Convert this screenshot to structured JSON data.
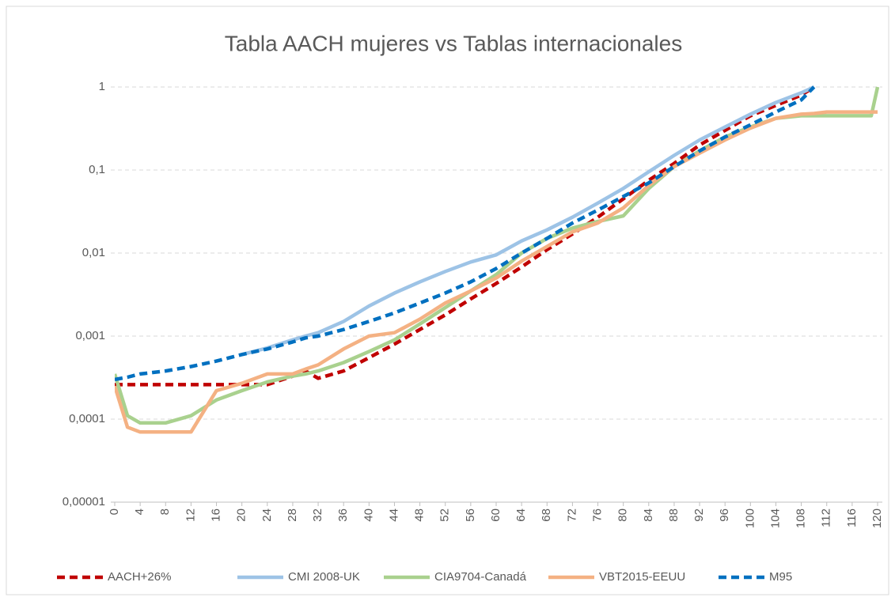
{
  "chart_data": {
    "type": "line",
    "title": "Tabla AACH mujeres vs Tablas internacionales",
    "x": [
      0,
      2,
      4,
      8,
      12,
      16,
      20,
      24,
      28,
      30,
      32,
      36,
      40,
      44,
      48,
      52,
      56,
      60,
      64,
      68,
      72,
      76,
      80,
      84,
      88,
      92,
      96,
      100,
      104,
      108,
      110,
      112,
      116,
      119,
      120
    ],
    "xlim": [
      0,
      120
    ],
    "xticks": [
      0,
      4,
      8,
      12,
      16,
      20,
      24,
      28,
      32,
      36,
      40,
      44,
      48,
      52,
      56,
      60,
      64,
      68,
      72,
      76,
      80,
      84,
      88,
      92,
      96,
      100,
      104,
      108,
      112,
      116,
      120
    ],
    "ylim": [
      1e-05,
      1
    ],
    "log_y": true,
    "grid": true,
    "legend": "bottom",
    "yticks": [
      {
        "value": 1e-05,
        "label": "0,00001"
      },
      {
        "value": 0.0001,
        "label": "0,0001"
      },
      {
        "value": 0.001,
        "label": "0,001"
      },
      {
        "value": 0.01,
        "label": "0,01"
      },
      {
        "value": 0.1,
        "label": "0,1"
      },
      1
    ],
    "series": [
      {
        "name": "AACH+26%",
        "color": "#c00000",
        "dashed": true,
        "values": [
          0.00026,
          0.00026,
          0.00026,
          0.00026,
          0.00026,
          0.00026,
          0.00026,
          0.00026,
          0.00033,
          0.00038,
          0.00031,
          0.00038,
          0.00055,
          0.0008,
          0.0012,
          0.0018,
          0.0028,
          0.0043,
          0.0068,
          0.011,
          0.017,
          0.027,
          0.045,
          0.075,
          0.12,
          0.2,
          0.3,
          0.45,
          0.6,
          0.8,
          1,
          null,
          null,
          null,
          null
        ]
      },
      {
        "name": "CMI 2008-UK",
        "color": "#9dc3e6",
        "dashed": false,
        "values": [
          null,
          null,
          null,
          null,
          null,
          null,
          0.0006,
          0.00072,
          0.0009,
          0.001,
          0.0011,
          0.0015,
          0.0023,
          0.0033,
          0.0045,
          0.006,
          0.0078,
          0.0095,
          0.014,
          0.019,
          0.027,
          0.04,
          0.06,
          0.095,
          0.15,
          0.23,
          0.33,
          0.47,
          0.65,
          0.85,
          1,
          null,
          null,
          null,
          null
        ]
      },
      {
        "name": "CIA9704-Canadá",
        "color": "#a9d18e",
        "dashed": false,
        "values": [
          0.00035,
          0.00011,
          9e-05,
          9e-05,
          0.00011,
          0.00017,
          0.00022,
          0.00028,
          0.00033,
          0.00035,
          0.00038,
          0.00048,
          0.00065,
          0.0009,
          0.0014,
          0.0022,
          0.0035,
          0.0055,
          0.01,
          0.015,
          0.02,
          0.024,
          0.028,
          0.06,
          0.11,
          0.17,
          0.25,
          0.33,
          0.42,
          0.45,
          0.45,
          0.45,
          0.45,
          0.45,
          1
        ]
      },
      {
        "name": "VBT2015-EEUU",
        "color": "#f4b183",
        "dashed": false,
        "values": [
          0.00025,
          8e-05,
          7e-05,
          7e-05,
          7e-05,
          0.00022,
          0.00027,
          0.00035,
          0.00035,
          0.0004,
          0.00045,
          0.0007,
          0.001,
          0.0011,
          0.0016,
          0.0025,
          0.0035,
          0.005,
          0.008,
          0.012,
          0.018,
          0.023,
          0.035,
          0.065,
          0.11,
          0.16,
          0.23,
          0.32,
          0.42,
          0.47,
          0.48,
          0.5,
          0.5,
          0.5,
          0.5
        ]
      },
      {
        "name": "M95",
        "color": "#0070c0",
        "dashed": true,
        "values": [
          0.0003,
          0.00032,
          0.00035,
          0.00038,
          0.00043,
          0.0005,
          0.0006,
          0.0007,
          0.00085,
          0.00095,
          0.001,
          0.0012,
          0.0015,
          0.0019,
          0.0025,
          0.0033,
          0.0045,
          0.0065,
          0.01,
          0.015,
          0.023,
          0.033,
          0.048,
          0.07,
          0.11,
          0.17,
          0.25,
          0.35,
          0.5,
          0.7,
          1,
          null,
          null,
          null,
          null
        ]
      }
    ]
  }
}
